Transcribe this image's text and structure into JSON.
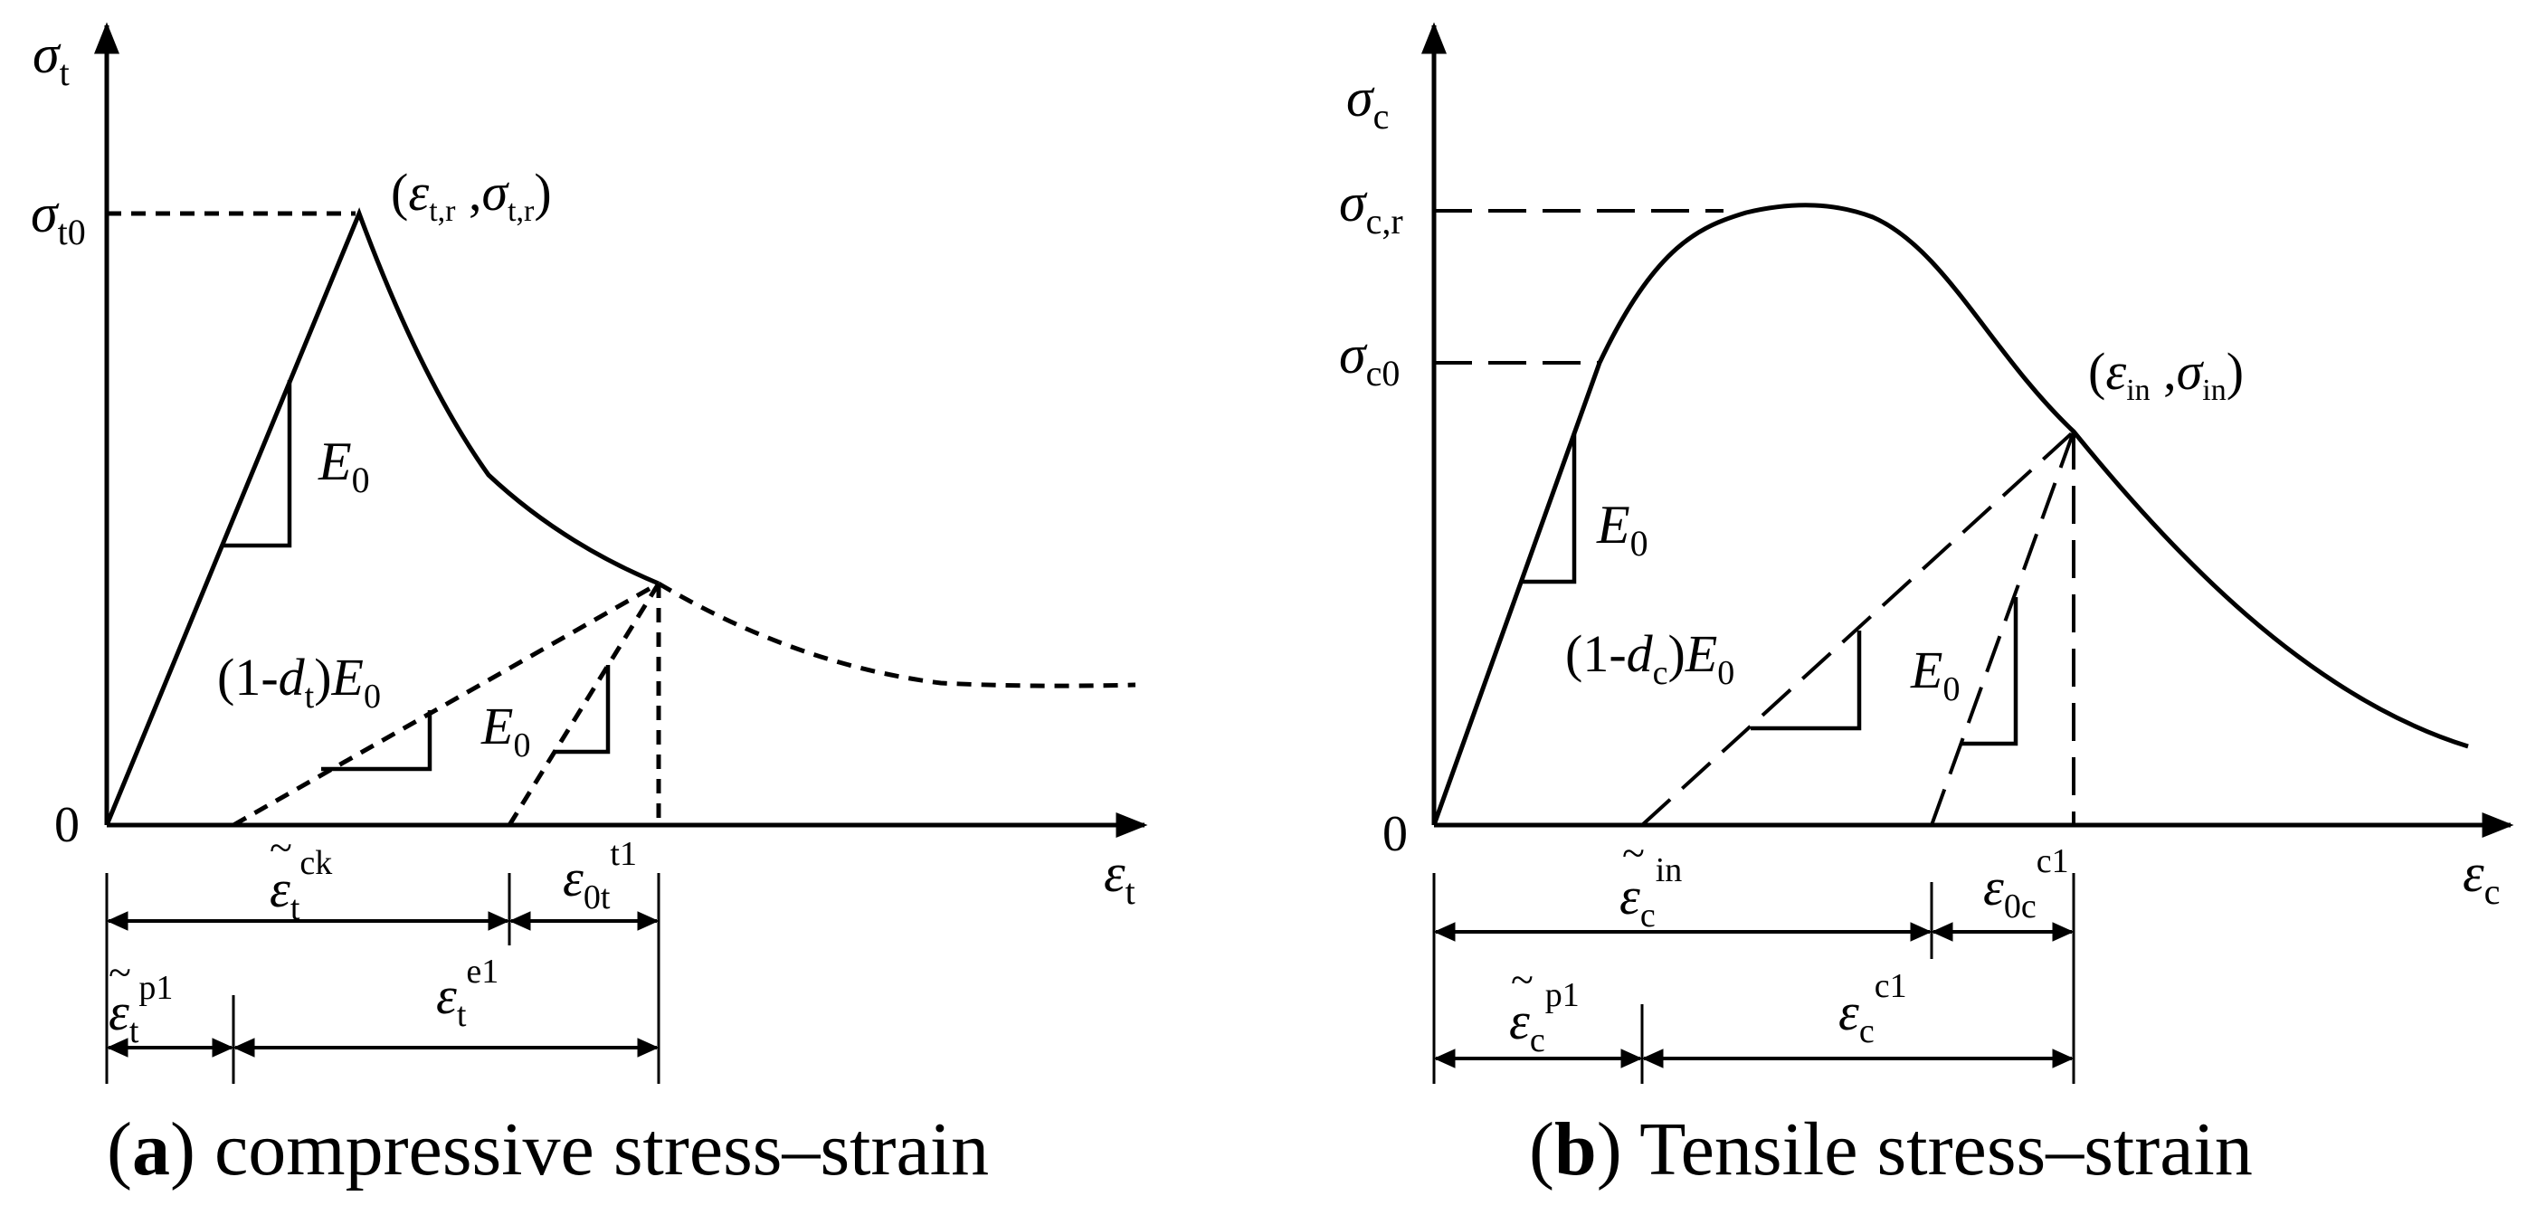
{
  "panel_a": {
    "y_axis": {
      "sym": "σ",
      "sub": "t"
    },
    "x_axis": {
      "sym": "ε",
      "sub": "t"
    },
    "origin": "0",
    "peak_tick": {
      "sym": "σ",
      "sub": "t0"
    },
    "peak_point": {
      "open": "(",
      "e": "ε",
      "e_sub": "t,r",
      "comma": " ,",
      "s": "σ",
      "s_sub": "t,r",
      "close": ")"
    },
    "slope_e0": {
      "sym": "E",
      "sub": "0"
    },
    "damaged_slope": {
      "pre": "(1-",
      "d": "d",
      "d_sub": "t",
      "mid": ")",
      "e": "E",
      "e_sub": "0"
    },
    "unload_slope": {
      "sym": "E",
      "sub": "0"
    },
    "dim_ck": {
      "tilde": "~",
      "sym": "ε",
      "sub": "t",
      "sup": "ck"
    },
    "dim_0t": {
      "sym": "ε",
      "sub": "0t",
      "sup": "t1"
    },
    "dim_pl": {
      "tilde": "~",
      "sym": "ε",
      "sub": "t",
      "sup": "p1"
    },
    "dim_el": {
      "sym": "ε",
      "sub": "t",
      "sup": "e1"
    },
    "caption": {
      "open": "(",
      "letter": "a",
      "rest": ") compressive stress–strain"
    }
  },
  "panel_b": {
    "y_axis": {
      "sym": "σ",
      "sub": "c"
    },
    "x_axis": {
      "sym": "ε",
      "sub": "c"
    },
    "origin": "0",
    "peak_tick": {
      "sym": "σ",
      "sub": "c,r"
    },
    "elastic_tick": {
      "sym": "σ",
      "sub": "c0"
    },
    "inflection_point": {
      "open": "(",
      "e": "ε",
      "e_sub": "in",
      "comma": " ,",
      "s": "σ",
      "s_sub": "in",
      "close": ")"
    },
    "slope_e0": {
      "sym": "E",
      "sub": "0"
    },
    "damaged_slope": {
      "pre": "(1-",
      "d": "d",
      "d_sub": "c",
      "mid": ")",
      "e": "E",
      "e_sub": "0"
    },
    "unload_slope": {
      "sym": "E",
      "sub": "0"
    },
    "dim_in": {
      "tilde": "~",
      "sym": "ε",
      "sub": "c",
      "sup": "in"
    },
    "dim_0c": {
      "sym": "ε",
      "sub": "0c",
      "sup": "c1"
    },
    "dim_pl": {
      "tilde": "~",
      "sym": "ε",
      "sub": "c",
      "sup": "p1"
    },
    "dim_el": {
      "sym": "ε",
      "sub": "c",
      "sup": "c1"
    },
    "caption": {
      "open": "(",
      "letter": "b",
      "rest": ") Tensile stress–strain"
    }
  }
}
